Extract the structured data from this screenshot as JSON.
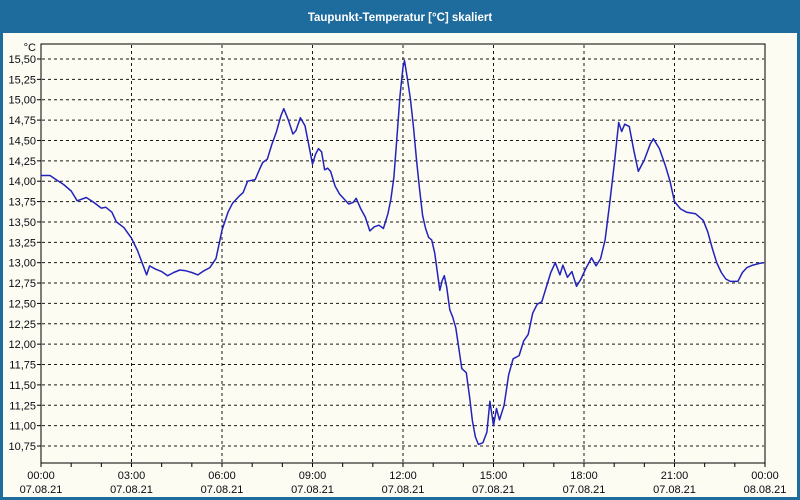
{
  "window": {
    "title": "Taupunkt-Temperatur [°C] skaliert"
  },
  "colors": {
    "frame": "#1e6b9d",
    "panel_bg": "#fcfcf2",
    "line": "#2323bb",
    "grid": "#1a1a1a",
    "axis": "#000000",
    "text": "#0a0a14"
  },
  "chart_data": {
    "type": "line",
    "title": "Taupunkt-Temperatur [°C] skaliert",
    "unit_label": "°C",
    "ylabel": "Taupunkt-Temperatur [°C]",
    "xlabel": "Zeit (07.08.21 00:00 - 08.08.21 00:00)",
    "ylim": [
      10.75,
      15.5
    ],
    "ytick_step": 0.25,
    "grid": true,
    "legend": "none",
    "y_tick_labels": [
      "15,50",
      "15,25",
      "15,00",
      "14,75",
      "14,50",
      "14,25",
      "14,00",
      "13,75",
      "13,50",
      "13,25",
      "13,00",
      "12,75",
      "12,50",
      "12,25",
      "12,00",
      "11,75",
      "11,50",
      "11,25",
      "11,00",
      "10,75"
    ],
    "x_ticks": [
      {
        "hour": 0,
        "time": "00:00",
        "date": "07.08.21"
      },
      {
        "hour": 3,
        "time": "03:00",
        "date": "07.08.21"
      },
      {
        "hour": 6,
        "time": "06:00",
        "date": "07.08.21"
      },
      {
        "hour": 9,
        "time": "09:00",
        "date": "07.08.21"
      },
      {
        "hour": 12,
        "time": "12:00",
        "date": "07.08.21"
      },
      {
        "hour": 15,
        "time": "15:00",
        "date": "07.08.21"
      },
      {
        "hour": 18,
        "time": "18:00",
        "date": "07.08.21"
      },
      {
        "hour": 21,
        "time": "21:00",
        "date": "07.08.21"
      },
      {
        "hour": 24,
        "time": "00:00",
        "date": "08.08.21"
      }
    ],
    "x_minor_step_hours": 1,
    "series": [
      {
        "name": "Taupunkt-Temperatur",
        "points": [
          [
            0,
            14.07
          ],
          [
            0.3,
            14.07
          ],
          [
            0.5,
            14.02
          ],
          [
            0.75,
            13.96
          ],
          [
            1.0,
            13.88
          ],
          [
            1.2,
            13.76
          ],
          [
            1.5,
            13.8
          ],
          [
            1.75,
            13.74
          ],
          [
            2.0,
            13.67
          ],
          [
            2.15,
            13.68
          ],
          [
            2.35,
            13.62
          ],
          [
            2.5,
            13.5
          ],
          [
            2.75,
            13.43
          ],
          [
            3.0,
            13.3
          ],
          [
            3.2,
            13.15
          ],
          [
            3.4,
            12.95
          ],
          [
            3.5,
            12.85
          ],
          [
            3.6,
            12.96
          ],
          [
            3.8,
            12.92
          ],
          [
            4.0,
            12.89
          ],
          [
            4.2,
            12.84
          ],
          [
            4.4,
            12.88
          ],
          [
            4.6,
            12.91
          ],
          [
            4.8,
            12.9
          ],
          [
            5.0,
            12.88
          ],
          [
            5.2,
            12.85
          ],
          [
            5.4,
            12.9
          ],
          [
            5.6,
            12.94
          ],
          [
            5.8,
            13.05
          ],
          [
            6.0,
            13.4
          ],
          [
            6.2,
            13.62
          ],
          [
            6.35,
            13.73
          ],
          [
            6.55,
            13.81
          ],
          [
            6.7,
            13.86
          ],
          [
            6.85,
            14.0
          ],
          [
            7.1,
            14.02
          ],
          [
            7.25,
            14.15
          ],
          [
            7.35,
            14.23
          ],
          [
            7.5,
            14.27
          ],
          [
            7.65,
            14.45
          ],
          [
            7.8,
            14.6
          ],
          [
            7.95,
            14.8
          ],
          [
            8.05,
            14.89
          ],
          [
            8.2,
            14.75
          ],
          [
            8.35,
            14.58
          ],
          [
            8.45,
            14.62
          ],
          [
            8.6,
            14.78
          ],
          [
            8.75,
            14.68
          ],
          [
            8.9,
            14.4
          ],
          [
            9.0,
            14.21
          ],
          [
            9.1,
            14.33
          ],
          [
            9.2,
            14.4
          ],
          [
            9.3,
            14.36
          ],
          [
            9.4,
            14.14
          ],
          [
            9.5,
            14.16
          ],
          [
            9.6,
            14.12
          ],
          [
            9.75,
            13.94
          ],
          [
            9.9,
            13.84
          ],
          [
            10.05,
            13.78
          ],
          [
            10.2,
            13.72
          ],
          [
            10.35,
            13.74
          ],
          [
            10.45,
            13.79
          ],
          [
            10.6,
            13.66
          ],
          [
            10.75,
            13.56
          ],
          [
            10.9,
            13.39
          ],
          [
            11.05,
            13.44
          ],
          [
            11.2,
            13.46
          ],
          [
            11.35,
            13.42
          ],
          [
            11.5,
            13.6
          ],
          [
            11.6,
            13.78
          ],
          [
            11.7,
            14.05
          ],
          [
            11.8,
            14.55
          ],
          [
            11.9,
            15.05
          ],
          [
            12.0,
            15.4
          ],
          [
            12.05,
            15.48
          ],
          [
            12.15,
            15.25
          ],
          [
            12.25,
            15.0
          ],
          [
            12.35,
            14.65
          ],
          [
            12.45,
            14.25
          ],
          [
            12.55,
            13.9
          ],
          [
            12.65,
            13.58
          ],
          [
            12.75,
            13.42
          ],
          [
            12.85,
            13.31
          ],
          [
            12.95,
            13.28
          ],
          [
            13.05,
            13.12
          ],
          [
            13.15,
            12.85
          ],
          [
            13.22,
            12.66
          ],
          [
            13.3,
            12.78
          ],
          [
            13.37,
            12.84
          ],
          [
            13.45,
            12.7
          ],
          [
            13.55,
            12.42
          ],
          [
            13.65,
            12.33
          ],
          [
            13.75,
            12.2
          ],
          [
            13.85,
            11.95
          ],
          [
            13.95,
            11.7
          ],
          [
            14.1,
            11.65
          ],
          [
            14.2,
            11.37
          ],
          [
            14.3,
            11.06
          ],
          [
            14.4,
            10.86
          ],
          [
            14.5,
            10.77
          ],
          [
            14.65,
            10.79
          ],
          [
            14.78,
            10.92
          ],
          [
            14.88,
            11.3
          ],
          [
            15.0,
            11.0
          ],
          [
            15.1,
            11.21
          ],
          [
            15.2,
            11.07
          ],
          [
            15.35,
            11.25
          ],
          [
            15.5,
            11.62
          ],
          [
            15.65,
            11.82
          ],
          [
            15.85,
            11.86
          ],
          [
            16.0,
            12.04
          ],
          [
            16.15,
            12.12
          ],
          [
            16.3,
            12.38
          ],
          [
            16.45,
            12.49
          ],
          [
            16.6,
            12.52
          ],
          [
            16.75,
            12.7
          ],
          [
            16.9,
            12.88
          ],
          [
            17.05,
            13.0
          ],
          [
            17.2,
            12.85
          ],
          [
            17.3,
            12.97
          ],
          [
            17.45,
            12.82
          ],
          [
            17.6,
            12.89
          ],
          [
            17.75,
            12.71
          ],
          [
            17.9,
            12.8
          ],
          [
            18.05,
            12.92
          ],
          [
            18.25,
            13.06
          ],
          [
            18.4,
            12.96
          ],
          [
            18.55,
            13.05
          ],
          [
            18.7,
            13.28
          ],
          [
            18.85,
            13.72
          ],
          [
            19.0,
            14.2
          ],
          [
            19.15,
            14.72
          ],
          [
            19.25,
            14.61
          ],
          [
            19.35,
            14.7
          ],
          [
            19.5,
            14.67
          ],
          [
            19.65,
            14.38
          ],
          [
            19.8,
            14.12
          ],
          [
            20.0,
            14.26
          ],
          [
            20.2,
            14.46
          ],
          [
            20.3,
            14.52
          ],
          [
            20.5,
            14.4
          ],
          [
            20.7,
            14.19
          ],
          [
            20.85,
            14.0
          ],
          [
            21.0,
            13.75
          ],
          [
            21.2,
            13.66
          ],
          [
            21.4,
            13.62
          ],
          [
            21.7,
            13.6
          ],
          [
            21.95,
            13.52
          ],
          [
            22.1,
            13.38
          ],
          [
            22.25,
            13.18
          ],
          [
            22.4,
            13.0
          ],
          [
            22.55,
            12.88
          ],
          [
            22.7,
            12.8
          ],
          [
            22.85,
            12.77
          ],
          [
            23.1,
            12.77
          ],
          [
            23.25,
            12.88
          ],
          [
            23.4,
            12.94
          ],
          [
            23.6,
            12.97
          ],
          [
            23.8,
            12.99
          ],
          [
            23.95,
            13.0
          ]
        ]
      }
    ]
  }
}
